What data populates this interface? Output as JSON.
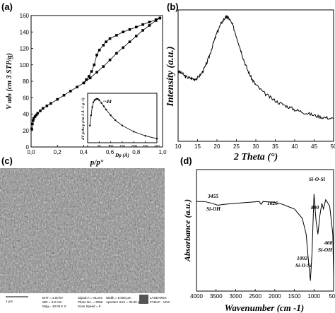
{
  "panels": {
    "a": "(a)",
    "b": "(b)",
    "c": "(c)",
    "d": "(d)"
  },
  "chart_data": [
    {
      "id": "a",
      "type": "line",
      "xlabel": "p/p°",
      "ylabel": "V ads (cm 3 STP/g)",
      "xlim": [
        0,
        1.0
      ],
      "ylim": [
        0,
        160
      ],
      "xticks": [
        "0,0",
        "0,2",
        "0,4",
        "0,6",
        "0,8",
        "1,0"
      ],
      "yticks": [
        "0",
        "20",
        "40",
        "60",
        "80",
        "100",
        "120",
        "140",
        "160"
      ],
      "series": [
        {
          "values_x": [
            0.005,
            0.01,
            0.015,
            0.02,
            0.03,
            0.04,
            0.05,
            0.07,
            0.09,
            0.12,
            0.15,
            0.2,
            0.25,
            0.3,
            0.35,
            0.4,
            0.45,
            0.5,
            0.55,
            0.6,
            0.65,
            0.7,
            0.75,
            0.8,
            0.85,
            0.9,
            0.95,
            0.98
          ],
          "values_y": [
            22,
            28,
            32,
            35,
            37,
            39,
            41,
            44,
            47,
            50,
            53,
            58,
            63,
            68,
            73,
            78,
            84,
            91,
            98,
            106,
            114,
            121,
            128,
            135,
            142,
            148,
            154,
            157
          ]
        },
        {
          "values_x": [
            0.98,
            0.95,
            0.9,
            0.85,
            0.8,
            0.75,
            0.7,
            0.65,
            0.6,
            0.57,
            0.55,
            0.52,
            0.5,
            0.48,
            0.46,
            0.44,
            0.42,
            0.4
          ],
          "values_y": [
            157,
            155,
            152,
            149,
            146,
            143,
            140,
            136,
            132,
            128,
            124,
            118,
            112,
            100,
            92,
            86,
            82,
            78
          ]
        }
      ],
      "inset": {
        "xlabel": "Dp (Å)",
        "ylabel": "dV p/dw p (cm 3 Å -1 g -1)",
        "annotation": "~44",
        "xlim": [
          0,
          300
        ],
        "xticks": [
          "0",
          "50",
          "100",
          "150",
          "200",
          "250",
          "300"
        ],
        "x": [
          10,
          15,
          20,
          25,
          30,
          35,
          40,
          44,
          50,
          60,
          70,
          80,
          100,
          120,
          150,
          200,
          250,
          300
        ],
        "y": [
          0.35,
          0.6,
          0.8,
          0.92,
          0.97,
          0.99,
          1.0,
          1.0,
          0.97,
          0.9,
          0.82,
          0.74,
          0.6,
          0.48,
          0.35,
          0.2,
          0.1,
          0.03
        ]
      }
    },
    {
      "id": "b",
      "type": "line",
      "xlabel": "2 Theta (°)",
      "ylabel": "Intensity (a.u.)",
      "xlim": [
        10,
        50
      ],
      "xticks": [
        "10",
        "15",
        "20",
        "25",
        "30",
        "35",
        "40",
        "45",
        "50"
      ],
      "x": [
        10,
        11,
        12,
        13,
        14,
        15,
        16,
        17,
        18,
        19,
        20,
        21,
        22,
        22.5,
        23,
        24,
        25,
        26,
        27,
        28,
        29,
        30,
        32,
        34,
        36,
        38,
        40,
        42,
        44,
        46,
        48,
        50
      ],
      "y": [
        0.52,
        0.5,
        0.47,
        0.46,
        0.45,
        0.46,
        0.5,
        0.56,
        0.65,
        0.76,
        0.86,
        0.94,
        0.99,
        1.0,
        0.99,
        0.93,
        0.83,
        0.72,
        0.61,
        0.52,
        0.45,
        0.4,
        0.33,
        0.28,
        0.24,
        0.21,
        0.18,
        0.16,
        0.14,
        0.12,
        0.11,
        0.1
      ]
    },
    {
      "id": "d",
      "type": "line",
      "xlabel": "Wavenumber (cm -1)",
      "ylabel": "Absorbance (a.u.)",
      "xlim": [
        4000,
        500
      ],
      "xticks": [
        "4000",
        "3500",
        "3000",
        "2500",
        "2000",
        "1500",
        "1000",
        "500"
      ],
      "x": [
        4000,
        3800,
        3600,
        3455,
        3300,
        3000,
        2700,
        2400,
        2350,
        2300,
        2000,
        1800,
        1626,
        1500,
        1300,
        1200,
        1150,
        1092,
        1050,
        1000,
        950,
        900,
        850,
        800,
        760,
        700,
        600,
        520,
        480,
        460,
        440,
        420
      ],
      "y": [
        0.9,
        0.9,
        0.88,
        0.86,
        0.87,
        0.88,
        0.89,
        0.9,
        0.87,
        0.9,
        0.89,
        0.87,
        0.84,
        0.82,
        0.72,
        0.55,
        0.3,
        0.05,
        0.35,
        0.98,
        0.7,
        0.55,
        0.75,
        0.88,
        0.82,
        0.92,
        0.85,
        0.55,
        0.1,
        0.02,
        0.5,
        0.85
      ],
      "annotations": [
        "3455",
        "Si-OH",
        "1626",
        "Si-O-Si",
        "800",
        "1092",
        "Si-O-Si",
        "460",
        "Si-OH"
      ]
    }
  ],
  "sem": {
    "scale_text": "1 µm",
    "meta_lines": [
      "EHT = 3.00 kV",
      "WD = 3.8 mm",
      "Mag = 18.05 K X",
      "Signal A = InLens",
      "Photo No. = 2066",
      "Scan Speed = 8",
      "Width = 6.000 µm",
      "Aperture Size = 30.00 µm"
    ],
    "lab_text": "LASEAREX",
    "lab_text2": "FAMAF · UNC"
  }
}
